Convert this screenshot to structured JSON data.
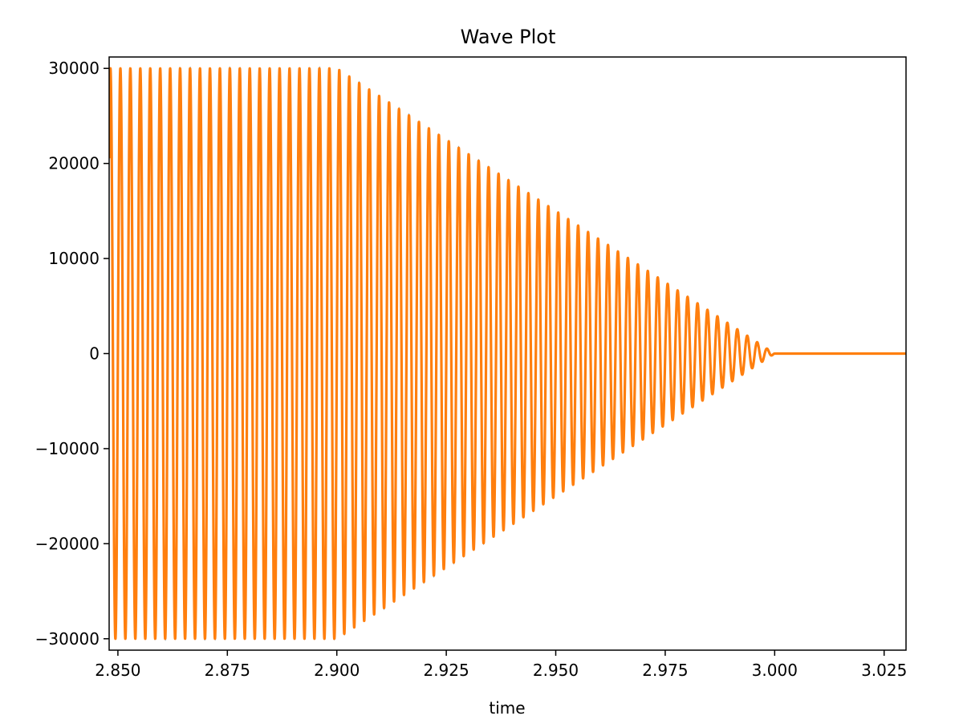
{
  "chart_data": {
    "type": "line",
    "title": "Wave Plot",
    "xlabel": "time",
    "ylabel": "",
    "xlim": [
      2.848,
      3.03
    ],
    "ylim": [
      -31200,
      31200
    ],
    "x_ticks": [
      2.85,
      2.875,
      2.9,
      2.925,
      2.95,
      2.975,
      3.0,
      3.025
    ],
    "x_tick_labels": [
      "2.850",
      "2.875",
      "2.900",
      "2.925",
      "2.950",
      "2.975",
      "3.000",
      "3.025"
    ],
    "y_ticks": [
      30000,
      20000,
      10000,
      0,
      -10000,
      -20000,
      -30000
    ],
    "y_tick_labels": [
      "30000",
      "20000",
      "10000",
      "0",
      "−10000",
      "−20000",
      "−30000"
    ],
    "grid": false,
    "series": [
      {
        "color": "#ff7f0e",
        "signal": {
          "shape": "sine",
          "frequency_hz": 440,
          "amplitude": 30000,
          "fade_start": 2.9,
          "fade_end": 3.0,
          "end_value": 0
        }
      }
    ],
    "overlay_color": "#1f77b4"
  }
}
